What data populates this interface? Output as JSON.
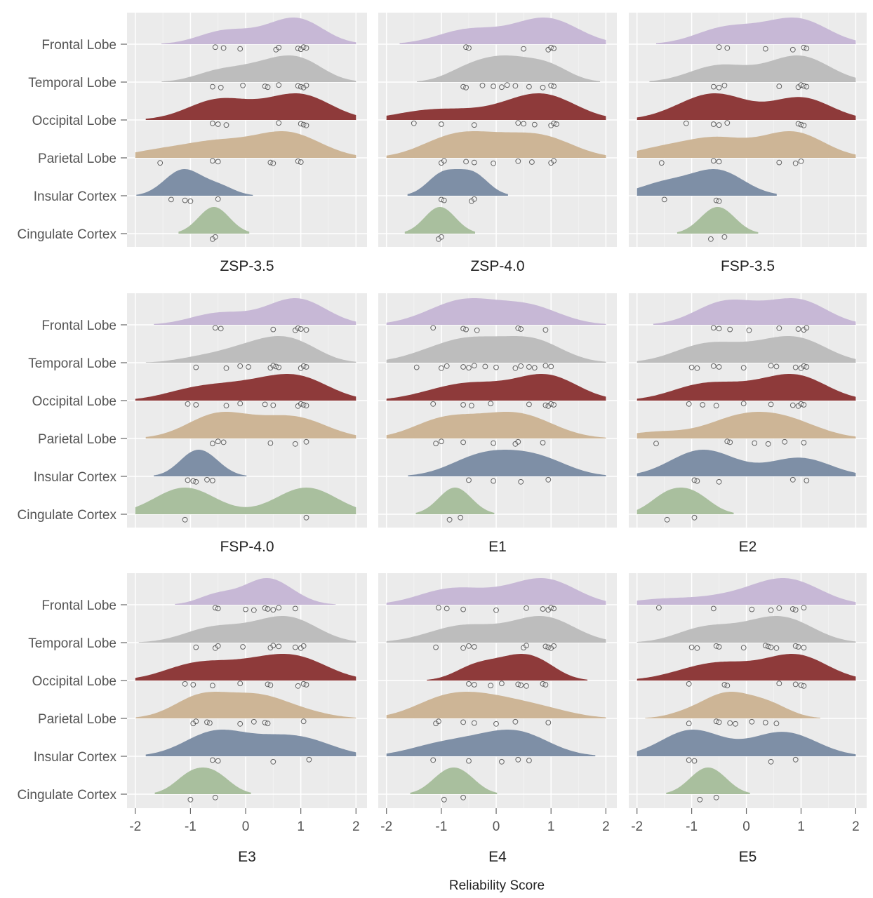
{
  "chart_data": {
    "type": "ridgeline",
    "xlabel": "Reliability Score",
    "xlim": [
      -2.15,
      2.2
    ],
    "x_ticks": [
      "-2",
      "-1",
      "0",
      "1",
      "2"
    ],
    "x_tick_values": [
      -2,
      -1,
      0,
      1,
      2
    ],
    "categories": [
      "Frontal Lobe",
      "Temporal Lobe",
      "Occipital Lobe",
      "Parietal Lobe",
      "Insular Cortex",
      "Cingulate Cortex"
    ],
    "colors": {
      "Frontal Lobe": "#c7b8d6",
      "Temporal Lobe": "#bdbdbd",
      "Occipital Lobe": "#8e3a3a",
      "Parietal Lobe": "#cdb596",
      "Insular Cortex": "#7e8fa6",
      "Cingulate Cortex": "#a9bf9e"
    },
    "panel_background": "#ebebeb",
    "grid": true,
    "facets": [
      {
        "title": "ZSP-3.5",
        "series": [
          {
            "name": "Frontal Lobe",
            "points": [
              -0.55,
              -0.4,
              -0.1,
              0.55,
              0.6,
              0.95,
              1.0,
              1.05,
              1.1
            ]
          },
          {
            "name": "Temporal Lobe",
            "points": [
              -0.6,
              -0.45,
              -0.05,
              0.35,
              0.4,
              0.6,
              0.95,
              1.0,
              1.05,
              1.1
            ]
          },
          {
            "name": "Occipital Lobe",
            "points": [
              -0.6,
              -0.5,
              -0.35,
              0.6,
              1.0,
              1.05,
              1.1
            ]
          },
          {
            "name": "Parietal Lobe",
            "points": [
              -1.55,
              -0.6,
              -0.5,
              0.45,
              0.5,
              0.95,
              1.0
            ]
          },
          {
            "name": "Insular Cortex",
            "points": [
              -1.35,
              -1.1,
              -1.0,
              -0.5
            ]
          },
          {
            "name": "Cingulate Cortex",
            "points": [
              -0.6,
              -0.55
            ]
          }
        ]
      },
      {
        "title": "ZSP-4.0",
        "series": [
          {
            "name": "Frontal Lobe",
            "points": [
              -0.55,
              -0.5,
              0.5,
              0.95,
              1.0,
              1.05
            ]
          },
          {
            "name": "Temporal Lobe",
            "points": [
              -0.6,
              -0.55,
              -0.25,
              -0.05,
              0.1,
              0.2,
              0.35,
              0.6,
              0.85,
              1.0,
              1.05
            ]
          },
          {
            "name": "Occipital Lobe",
            "points": [
              -1.5,
              -1.0,
              -0.4,
              0.4,
              0.5,
              0.7,
              1.0,
              1.05,
              1.1
            ]
          },
          {
            "name": "Parietal Lobe",
            "points": [
              -1.0,
              -0.95,
              -0.55,
              -0.4,
              -0.05,
              0.4,
              0.65,
              1.0,
              1.05
            ]
          },
          {
            "name": "Insular Cortex",
            "points": [
              -1.0,
              -0.95,
              -0.45,
              -0.4
            ]
          },
          {
            "name": "Cingulate Cortex",
            "points": [
              -1.05,
              -1.0
            ]
          }
        ]
      },
      {
        "title": "FSP-3.5",
        "series": [
          {
            "name": "Frontal Lobe",
            "points": [
              -0.5,
              -0.35,
              0.35,
              0.85,
              1.05,
              1.1
            ]
          },
          {
            "name": "Temporal Lobe",
            "points": [
              -0.6,
              -0.5,
              -0.4,
              0.6,
              0.95,
              1.0,
              1.05,
              1.1
            ]
          },
          {
            "name": "Occipital Lobe",
            "points": [
              -1.1,
              -0.6,
              -0.5,
              -0.35,
              0.95,
              1.0,
              1.05
            ]
          },
          {
            "name": "Parietal Lobe",
            "points": [
              -1.55,
              -0.6,
              -0.5,
              0.6,
              0.9,
              1.0
            ]
          },
          {
            "name": "Insular Cortex",
            "points": [
              -1.5,
              -0.55,
              -0.5
            ]
          },
          {
            "name": "Cingulate Cortex",
            "points": [
              -0.65,
              -0.4
            ]
          }
        ]
      },
      {
        "title": "FSP-4.0",
        "series": [
          {
            "name": "Frontal Lobe",
            "points": [
              -0.55,
              -0.45,
              0.5,
              0.9,
              0.95,
              1.0,
              1.1
            ]
          },
          {
            "name": "Temporal Lobe",
            "points": [
              -0.9,
              -0.35,
              -0.1,
              0.05,
              0.45,
              0.5,
              0.55,
              0.6,
              1.0,
              1.05,
              1.1
            ]
          },
          {
            "name": "Occipital Lobe",
            "points": [
              -1.05,
              -0.9,
              -0.35,
              -0.1,
              0.35,
              0.5,
              0.95,
              1.0,
              1.05,
              1.1
            ]
          },
          {
            "name": "Parietal Lobe",
            "points": [
              -0.6,
              -0.5,
              -0.4,
              0.45,
              0.9,
              1.1
            ]
          },
          {
            "name": "Insular Cortex",
            "points": [
              -1.05,
              -0.95,
              -0.9,
              -0.7,
              -0.6
            ]
          },
          {
            "name": "Cingulate Cortex",
            "points": [
              -1.1,
              1.1
            ]
          }
        ]
      },
      {
        "title": "E1",
        "series": [
          {
            "name": "Frontal Lobe",
            "points": [
              -1.15,
              -0.6,
              -0.55,
              -0.35,
              0.4,
              0.45,
              0.9
            ]
          },
          {
            "name": "Temporal Lobe",
            "points": [
              -1.45,
              -1.0,
              -0.9,
              -0.6,
              -0.5,
              -0.4,
              -0.2,
              0.0,
              0.35,
              0.45,
              0.6,
              0.7,
              0.9,
              1.0
            ]
          },
          {
            "name": "Occipital Lobe",
            "points": [
              -1.15,
              -0.6,
              -0.45,
              -0.1,
              0.6,
              0.9,
              0.95,
              1.0,
              1.05
            ]
          },
          {
            "name": "Parietal Lobe",
            "points": [
              -1.1,
              -1.0,
              -0.6,
              -0.05,
              0.35,
              0.4,
              0.85
            ]
          },
          {
            "name": "Insular Cortex",
            "points": [
              -0.5,
              -0.05,
              0.45,
              0.95
            ]
          },
          {
            "name": "Cingulate Cortex",
            "points": [
              -0.85,
              -0.65
            ]
          }
        ]
      },
      {
        "title": "E2",
        "series": [
          {
            "name": "Frontal Lobe",
            "points": [
              -0.6,
              -0.5,
              -0.3,
              0.05,
              0.6,
              0.95,
              1.05,
              1.1
            ]
          },
          {
            "name": "Temporal Lobe",
            "points": [
              -1.0,
              -0.9,
              -0.6,
              -0.5,
              -0.05,
              0.45,
              0.55,
              0.9,
              1.0,
              1.05,
              1.1
            ]
          },
          {
            "name": "Occipital Lobe",
            "points": [
              -1.05,
              -0.8,
              -0.55,
              -0.05,
              0.45,
              0.85,
              0.95,
              1.0,
              1.05
            ]
          },
          {
            "name": "Parietal Lobe",
            "points": [
              -1.65,
              -0.35,
              -0.3,
              0.15,
              0.4,
              0.7,
              1.05
            ]
          },
          {
            "name": "Insular Cortex",
            "points": [
              -0.95,
              -0.9,
              -0.5,
              0.85,
              1.1
            ]
          },
          {
            "name": "Cingulate Cortex",
            "points": [
              -1.45,
              -0.95
            ]
          }
        ]
      },
      {
        "title": "E3",
        "series": [
          {
            "name": "Frontal Lobe",
            "points": [
              -0.55,
              -0.5,
              0.0,
              0.15,
              0.35,
              0.4,
              0.5,
              0.6,
              0.9
            ]
          },
          {
            "name": "Temporal Lobe",
            "points": [
              -0.9,
              -0.55,
              -0.5,
              -0.05,
              0.45,
              0.5,
              0.6,
              0.9,
              1.0,
              1.05
            ]
          },
          {
            "name": "Occipital Lobe",
            "points": [
              -1.1,
              -0.95,
              -0.6,
              -0.1,
              0.4,
              0.45,
              0.95,
              1.05,
              1.1
            ]
          },
          {
            "name": "Parietal Lobe",
            "points": [
              -0.95,
              -0.9,
              -0.7,
              -0.65,
              -0.1,
              0.15,
              0.35,
              0.4,
              1.05
            ]
          },
          {
            "name": "Insular Cortex",
            "points": [
              -0.6,
              -0.5,
              0.5,
              1.15
            ]
          },
          {
            "name": "Cingulate Cortex",
            "points": [
              -1.0,
              -0.55
            ]
          }
        ]
      },
      {
        "title": "E4",
        "series": [
          {
            "name": "Frontal Lobe",
            "points": [
              -1.05,
              -0.9,
              -0.6,
              0.0,
              0.55,
              0.85,
              0.95,
              1.0,
              1.05
            ]
          },
          {
            "name": "Temporal Lobe",
            "points": [
              -1.1,
              -0.6,
              -0.5,
              -0.4,
              0.5,
              0.55,
              0.9,
              0.95,
              1.0,
              1.05
            ]
          },
          {
            "name": "Occipital Lobe",
            "points": [
              -0.5,
              -0.4,
              -0.1,
              0.1,
              0.4,
              0.45,
              0.55,
              0.85,
              0.9
            ]
          },
          {
            "name": "Parietal Lobe",
            "points": [
              -1.1,
              -1.05,
              -0.6,
              -0.4,
              0.0,
              0.35,
              0.95
            ]
          },
          {
            "name": "Insular Cortex",
            "points": [
              -1.15,
              -0.5,
              0.1,
              0.4,
              0.6
            ]
          },
          {
            "name": "Cingulate Cortex",
            "points": [
              -0.95,
              -0.6
            ]
          }
        ]
      },
      {
        "title": "E5",
        "series": [
          {
            "name": "Frontal Lobe",
            "points": [
              -1.6,
              -0.6,
              0.1,
              0.45,
              0.6,
              0.85,
              0.9,
              1.05
            ]
          },
          {
            "name": "Temporal Lobe",
            "points": [
              -1.0,
              -0.9,
              -0.55,
              -0.5,
              -0.05,
              0.35,
              0.4,
              0.45,
              0.55,
              0.9,
              0.95,
              1.05
            ]
          },
          {
            "name": "Occipital Lobe",
            "points": [
              -1.05,
              -0.4,
              -0.35,
              0.6,
              0.9,
              1.0,
              1.05
            ]
          },
          {
            "name": "Parietal Lobe",
            "points": [
              -1.05,
              -0.55,
              -0.5,
              -0.3,
              -0.2,
              0.1,
              0.35,
              0.55
            ]
          },
          {
            "name": "Insular Cortex",
            "points": [
              -1.05,
              -0.95,
              0.45,
              0.9
            ]
          },
          {
            "name": "Cingulate Cortex",
            "points": [
              -0.85,
              -0.55
            ]
          }
        ]
      }
    ]
  }
}
